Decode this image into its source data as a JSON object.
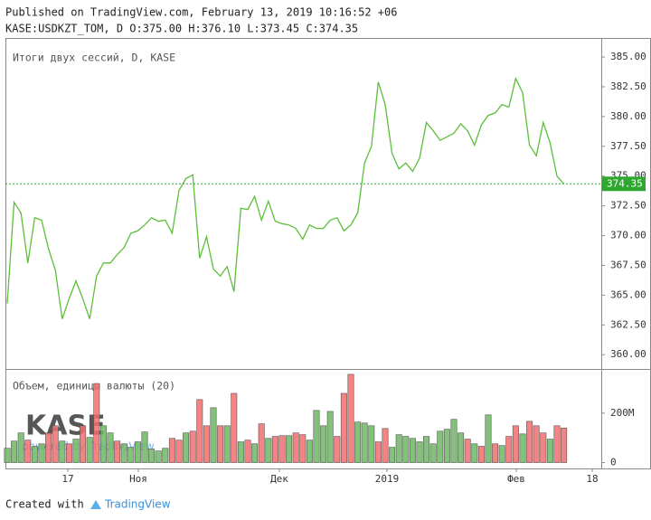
{
  "header": {
    "published": "Published on TradingView.com, February 13, 2019 10:16:52 +06",
    "ohlc": "KASE:USDKZT_TOM, D O:375.00 H:376.10 L:373.45 C:374.35"
  },
  "watermark": {
    "logo": "KASE",
    "powered": "powered by TradingView"
  },
  "footer": {
    "created": "Created with",
    "brand": "TradingView"
  },
  "chart_data": [
    {
      "type": "line",
      "title": "Итоги двух сессий, D, KASE",
      "color": "#5cbf3a",
      "grid": false,
      "ylim": [
        358.8,
        386.6
      ],
      "yticks": [
        {
          "value": 360,
          "label": "360.00"
        },
        {
          "value": 362.5,
          "label": "362.50"
        },
        {
          "value": 365,
          "label": "365.00"
        },
        {
          "value": 367.5,
          "label": "367.50"
        },
        {
          "value": 370,
          "label": "370.00"
        },
        {
          "value": 372.5,
          "label": "372.50"
        },
        {
          "value": 375,
          "label": "375.00"
        },
        {
          "value": 377.5,
          "label": "377.50"
        },
        {
          "value": 380,
          "label": "380.00"
        },
        {
          "value": 382.5,
          "label": "382.50"
        },
        {
          "value": 385,
          "label": "385.00"
        }
      ],
      "values": [
        364.3,
        372.8,
        371.9,
        367.7,
        371.5,
        371.3,
        368.9,
        367.1,
        363.0,
        364.7,
        366.2,
        364.7,
        363.0,
        366.6,
        367.7,
        367.7,
        368.4,
        369.0,
        370.2,
        370.4,
        370.9,
        371.5,
        371.2,
        371.3,
        370.2,
        373.8,
        374.8,
        375.1,
        368.1,
        369.9,
        367.2,
        366.6,
        367.4,
        365.3,
        372.3,
        372.2,
        373.3,
        371.3,
        372.9,
        371.2,
        371.0,
        370.9,
        370.6,
        369.7,
        370.9,
        370.6,
        370.6,
        371.3,
        371.5,
        370.4,
        370.9,
        371.9,
        376.1,
        377.5,
        382.9,
        381.0,
        376.9,
        375.6,
        376.1,
        375.4,
        376.5,
        379.5,
        378.8,
        378.0,
        378.3,
        378.6,
        379.4,
        378.8,
        377.6,
        379.3,
        380.1,
        380.3,
        381.0,
        380.8,
        383.2,
        382.0,
        377.6,
        376.7,
        379.5,
        377.8,
        375.0,
        374.35
      ],
      "last_value_color": "#2ea82e"
    },
    {
      "type": "bar",
      "title": "Объем, единицы валюты (20)",
      "ylim": [
        -20000000,
        375000000
      ],
      "yticks": [
        0,
        {
          "value": 200000000,
          "label": "200M"
        }
      ],
      "x_labels": [
        "17",
        "Ноя",
        "Дек",
        "2019",
        "Фев",
        "18"
      ],
      "values": [
        58000000,
        87000000,
        120000000,
        91000000,
        66000000,
        76000000,
        120000000,
        149000000,
        87000000,
        76000000,
        95000000,
        149000000,
        102000000,
        320000000,
        149000000,
        120000000,
        87000000,
        76000000,
        62000000,
        84000000,
        124000000,
        55000000,
        47000000,
        58000000,
        98000000,
        91000000,
        120000000,
        127000000,
        255000000,
        149000000,
        222000000,
        149000000,
        149000000,
        280000000,
        84000000,
        91000000,
        76000000,
        157000000,
        98000000,
        106000000,
        109000000,
        109000000,
        120000000,
        113000000,
        91000000,
        211000000,
        149000000,
        207000000,
        106000000,
        280000000,
        357000000,
        164000000,
        160000000,
        149000000,
        84000000,
        138000000,
        62000000,
        113000000,
        106000000,
        98000000,
        84000000,
        106000000,
        76000000,
        127000000,
        135000000,
        175000000,
        120000000,
        95000000,
        76000000,
        66000000,
        193000000,
        76000000,
        69000000,
        106000000,
        149000000,
        116000000,
        167000000,
        149000000,
        120000000,
        95000000,
        149000000,
        140000000
      ],
      "colors": [
        "#6fb663",
        "#6fb663",
        "#6fb663",
        "#f26d6d",
        "#6fb663",
        "#6fb663",
        "#f26d6d",
        "#f26d6d",
        "#6fb663",
        "#f26d6d",
        "#6fb663",
        "#f26d6d",
        "#6fb663",
        "#f26d6d",
        "#6fb663",
        "#6fb663",
        "#f26d6d",
        "#6fb663",
        "#6fb663",
        "#6fb663",
        "#6fb663",
        "#6fb663",
        "#6fb663",
        "#6fb663",
        "#f26d6d",
        "#f26d6d",
        "#6fb663",
        "#f26d6d",
        "#f26d6d",
        "#f26d6d",
        "#6fb663",
        "#f26d6d",
        "#6fb663",
        "#f26d6d",
        "#6fb663",
        "#f26d6d",
        "#6fb663",
        "#f26d6d",
        "#6fb663",
        "#f26d6d",
        "#f26d6d",
        "#6fb663",
        "#f26d6d",
        "#f26d6d",
        "#6fb663",
        "#6fb663",
        "#6fb663",
        "#6fb663",
        "#f26d6d",
        "#f26d6d",
        "#f26d6d",
        "#6fb663",
        "#6fb663",
        "#6fb663",
        "#f26d6d",
        "#f26d6d",
        "#6fb663",
        "#6fb663",
        "#6fb663",
        "#6fb663",
        "#6fb663",
        "#6fb663",
        "#6fb663",
        "#6fb663",
        "#6fb663",
        "#6fb663",
        "#6fb663",
        "#f26d6d",
        "#6fb663",
        "#f26d6d",
        "#6fb663",
        "#f26d6d",
        "#6fb663",
        "#f26d6d",
        "#f26d6d",
        "#6fb663",
        "#f26d6d",
        "#f26d6d",
        "#f26d6d",
        "#6fb663",
        "#f26d6d",
        "#f26d6d"
      ]
    }
  ]
}
